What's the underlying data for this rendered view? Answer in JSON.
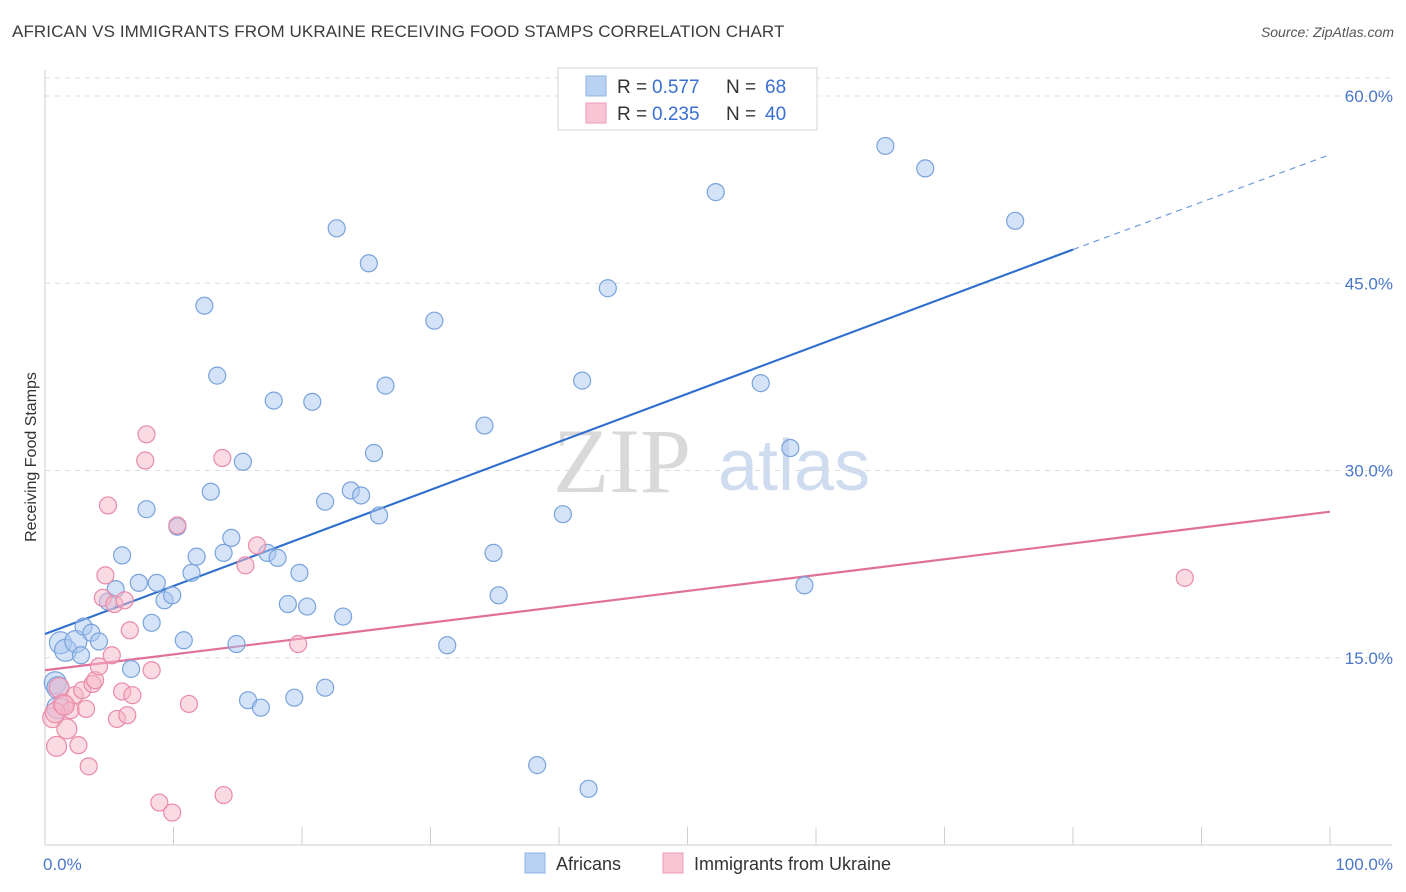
{
  "title": "AFRICAN VS IMMIGRANTS FROM UKRAINE RECEIVING FOOD STAMPS CORRELATION CHART",
  "source": "Source: ZipAtlas.com",
  "watermark": {
    "zip": "ZIP",
    "atlas": "atlas"
  },
  "legend": {
    "series1": {
      "r_label": "R =",
      "r_value": "0.577",
      "n_label": "N =",
      "n_value": "68"
    },
    "series2": {
      "r_label": "R =",
      "r_value": "0.235",
      "n_label": "N =",
      "n_value": "40"
    }
  },
  "bottom_legend": {
    "series1": "Africans",
    "series2": "Immigrants from Ukraine"
  },
  "colors": {
    "blue_fill": "#a9c8f0",
    "blue_stroke": "#7aa3dc",
    "blue_line": "#2f6fce",
    "pink_fill": "#f6b6c8",
    "pink_stroke": "#e98aa8",
    "pink_line": "#e0709a",
    "grid": "#dddddd",
    "tick_text": "#4a78c8"
  },
  "chart_data": {
    "type": "scatter",
    "title": "AFRICAN VS IMMIGRANTS FROM UKRAINE RECEIVING FOOD STAMPS CORRELATION CHART",
    "xlabel": "",
    "ylabel": "Receiving Food Stamps",
    "xlim": [
      0,
      100
    ],
    "ylim": [
      0,
      60
    ],
    "x_tick_labels": [
      "0.0%",
      "100.0%"
    ],
    "y_ticks": [
      15,
      30,
      45,
      60
    ],
    "y_tick_labels": [
      "15.0%",
      "30.0%",
      "45.0%",
      "60.0%"
    ],
    "series": [
      {
        "name": "Africans",
        "r": 0.577,
        "n": 68,
        "trend": {
          "x0": 0,
          "y0": 16.9,
          "x1": 80,
          "y1": 47.7,
          "dash_to_x": 100,
          "dash_to_y": 55.3
        },
        "points": [
          [
            1.2,
            16.2
          ],
          [
            1.6,
            15.6
          ],
          [
            2.4,
            16.3
          ],
          [
            3.0,
            17.5
          ],
          [
            3.6,
            17.0
          ],
          [
            4.2,
            16.3
          ],
          [
            2.8,
            15.2
          ],
          [
            1.0,
            11.0
          ],
          [
            0.8,
            13.0
          ],
          [
            4.9,
            19.5
          ],
          [
            5.5,
            20.5
          ],
          [
            6.0,
            23.2
          ],
          [
            6.7,
            14.1
          ],
          [
            7.3,
            21.0
          ],
          [
            7.9,
            26.9
          ],
          [
            8.3,
            17.8
          ],
          [
            8.7,
            21.0
          ],
          [
            9.3,
            19.6
          ],
          [
            9.9,
            20.0
          ],
          [
            10.3,
            25.5
          ],
          [
            10.8,
            16.4
          ],
          [
            11.4,
            21.8
          ],
          [
            11.8,
            23.1
          ],
          [
            12.4,
            43.2
          ],
          [
            12.9,
            28.3
          ],
          [
            13.4,
            37.6
          ],
          [
            13.9,
            23.4
          ],
          [
            14.5,
            24.6
          ],
          [
            14.9,
            16.1
          ],
          [
            15.4,
            30.7
          ],
          [
            15.8,
            11.6
          ],
          [
            16.8,
            11.0
          ],
          [
            17.3,
            23.4
          ],
          [
            18.1,
            23.0
          ],
          [
            17.8,
            35.6
          ],
          [
            18.9,
            19.3
          ],
          [
            19.4,
            11.8
          ],
          [
            19.8,
            21.8
          ],
          [
            20.4,
            19.1
          ],
          [
            20.8,
            35.5
          ],
          [
            21.8,
            12.6
          ],
          [
            21.8,
            27.5
          ],
          [
            22.7,
            49.4
          ],
          [
            23.2,
            18.3
          ],
          [
            23.8,
            28.4
          ],
          [
            24.6,
            28.0
          ],
          [
            25.2,
            46.6
          ],
          [
            25.6,
            31.4
          ],
          [
            26.0,
            26.4
          ],
          [
            26.5,
            36.8
          ],
          [
            30.3,
            42.0
          ],
          [
            31.3,
            16.0
          ],
          [
            34.2,
            33.6
          ],
          [
            34.9,
            23.4
          ],
          [
            35.3,
            20.0
          ],
          [
            38.3,
            6.4
          ],
          [
            40.3,
            26.5
          ],
          [
            41.8,
            37.2
          ],
          [
            42.3,
            4.5
          ],
          [
            43.8,
            44.6
          ],
          [
            52.2,
            52.3
          ],
          [
            55.7,
            37.0
          ],
          [
            58.0,
            31.8
          ],
          [
            59.1,
            20.8
          ],
          [
            65.4,
            56.0
          ],
          [
            68.5,
            54.2
          ],
          [
            75.5,
            50.0
          ],
          [
            1.0,
            12.6
          ]
        ]
      },
      {
        "name": "Immigrants from Ukraine",
        "r": 0.235,
        "n": 40,
        "trend": {
          "x0": 0,
          "y0": 14.0,
          "x1": 100,
          "y1": 26.7
        },
        "points": [
          [
            0.6,
            10.2
          ],
          [
            1.1,
            12.6
          ],
          [
            1.4,
            11.3
          ],
          [
            1.7,
            9.3
          ],
          [
            2.0,
            10.8
          ],
          [
            2.3,
            12.0
          ],
          [
            2.6,
            8.0
          ],
          [
            2.9,
            12.4
          ],
          [
            3.2,
            10.9
          ],
          [
            3.4,
            6.3
          ],
          [
            3.7,
            12.9
          ],
          [
            3.9,
            13.2
          ],
          [
            4.2,
            14.3
          ],
          [
            4.5,
            19.8
          ],
          [
            4.7,
            21.6
          ],
          [
            4.9,
            27.2
          ],
          [
            5.2,
            15.2
          ],
          [
            5.4,
            19.3
          ],
          [
            5.6,
            10.1
          ],
          [
            6.0,
            12.3
          ],
          [
            6.2,
            19.6
          ],
          [
            6.4,
            10.4
          ],
          [
            6.6,
            17.2
          ],
          [
            6.8,
            12.0
          ],
          [
            7.8,
            30.8
          ],
          [
            7.9,
            32.9
          ],
          [
            8.3,
            14.0
          ],
          [
            8.9,
            3.4
          ],
          [
            9.9,
            2.6
          ],
          [
            10.3,
            25.6
          ],
          [
            11.2,
            11.3
          ],
          [
            13.8,
            31.0
          ],
          [
            13.9,
            4.0
          ],
          [
            15.6,
            22.4
          ],
          [
            16.5,
            24.0
          ],
          [
            19.7,
            16.1
          ],
          [
            88.7,
            21.4
          ],
          [
            0.8,
            10.6
          ],
          [
            1.5,
            11.2
          ],
          [
            0.9,
            7.9
          ]
        ]
      }
    ]
  }
}
